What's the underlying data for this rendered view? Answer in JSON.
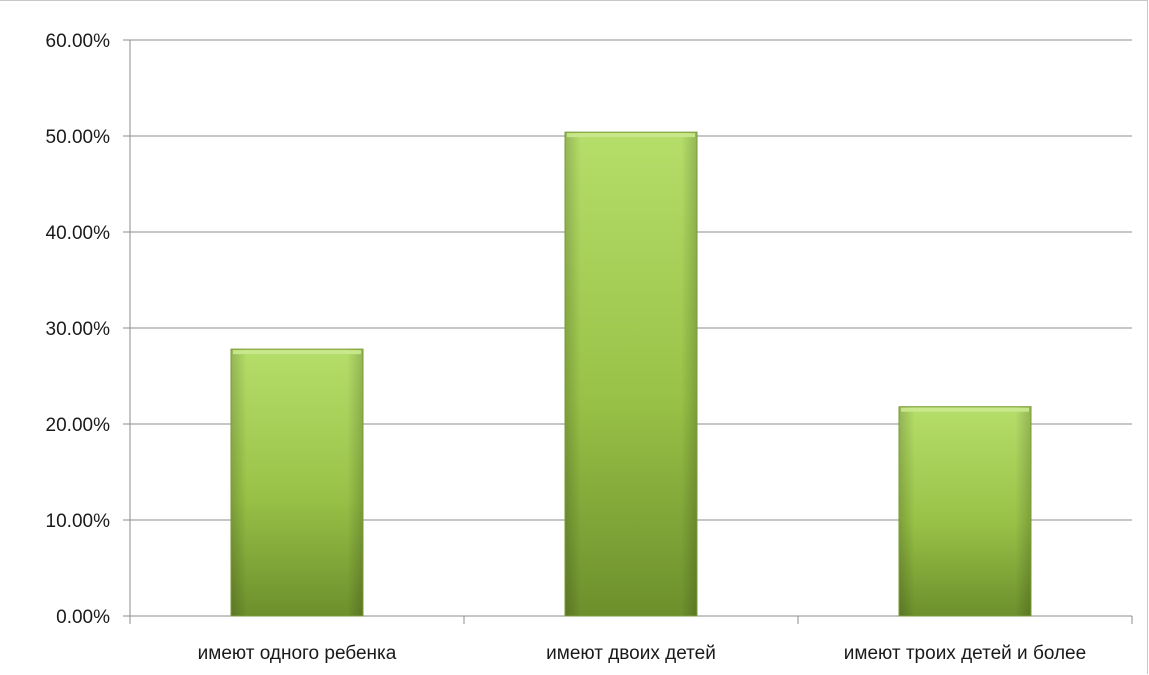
{
  "chart_data": {
    "type": "bar",
    "categories": [
      "имеют одного ребенка",
      "имеют двоих детей",
      "имеют троих детей и более"
    ],
    "values": [
      0.278,
      0.504,
      0.218
    ],
    "ylim": [
      0,
      0.6
    ],
    "yticks": [
      0,
      0.1,
      0.2,
      0.3,
      0.4,
      0.5,
      0.6
    ],
    "ytick_labels": [
      "0.00%",
      "10.00%",
      "20.00%",
      "30.00%",
      "40.00%",
      "50.00%",
      "60.00%"
    ],
    "grid": true,
    "legend": "none",
    "colors": {
      "bar_light": "#b5de6a",
      "bar_mid": "#95c044",
      "bar_dark": "#6d8f2c",
      "grid": "#8c8c8c",
      "axis": "#8c8c8c"
    }
  }
}
